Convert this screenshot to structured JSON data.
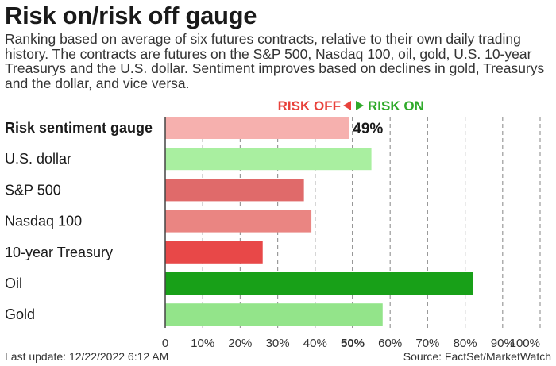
{
  "title": "Risk on/risk off gauge",
  "subtitle": "Ranking based on average of six futures contracts, relative to their own daily trading history. The contracts are futures on the S&P 500, Nasdaq 100, oil, gold, U.S. 10-year Treasurys and the U.S. dollar. Sentiment improves based on declines in gold, Treasurys and the dollar, and vice versa.",
  "legend": {
    "risk_off": "RISK OFF",
    "risk_on": "RISK ON"
  },
  "footer": {
    "last_update": "Last update: 12/22/2022 6:12 AM",
    "source": "Source: FactSet/MarketWatch"
  },
  "colors": {
    "risk_off_text": "#e8423b",
    "risk_on_text": "#2faa2a"
  },
  "chart_data": {
    "type": "bar",
    "orientation": "horizontal",
    "xlim": [
      0,
      100
    ],
    "x_ticks": [
      "0",
      "10%",
      "20%",
      "30%",
      "40%",
      "50%",
      "60%",
      "70%",
      "80%",
      "90%",
      "100%"
    ],
    "highlight_tick": "50%",
    "grid": "dashed vertical",
    "categories": [
      "Risk sentiment gauge",
      "U.S. dollar",
      "S&P 500",
      "Nasdaq 100",
      "10-year Treasury",
      "Oil",
      "Gold"
    ],
    "values": [
      49,
      55,
      37,
      39,
      26,
      82,
      58
    ],
    "value_labels": [
      "49%",
      "",
      "",
      "",
      "",
      "",
      ""
    ],
    "bold_categories": [
      "Risk sentiment gauge"
    ],
    "bar_colors": [
      "#f6b0ae",
      "#a9efa0",
      "#e06a6a",
      "#ea8582",
      "#e84848",
      "#18a018",
      "#93e48a"
    ]
  }
}
